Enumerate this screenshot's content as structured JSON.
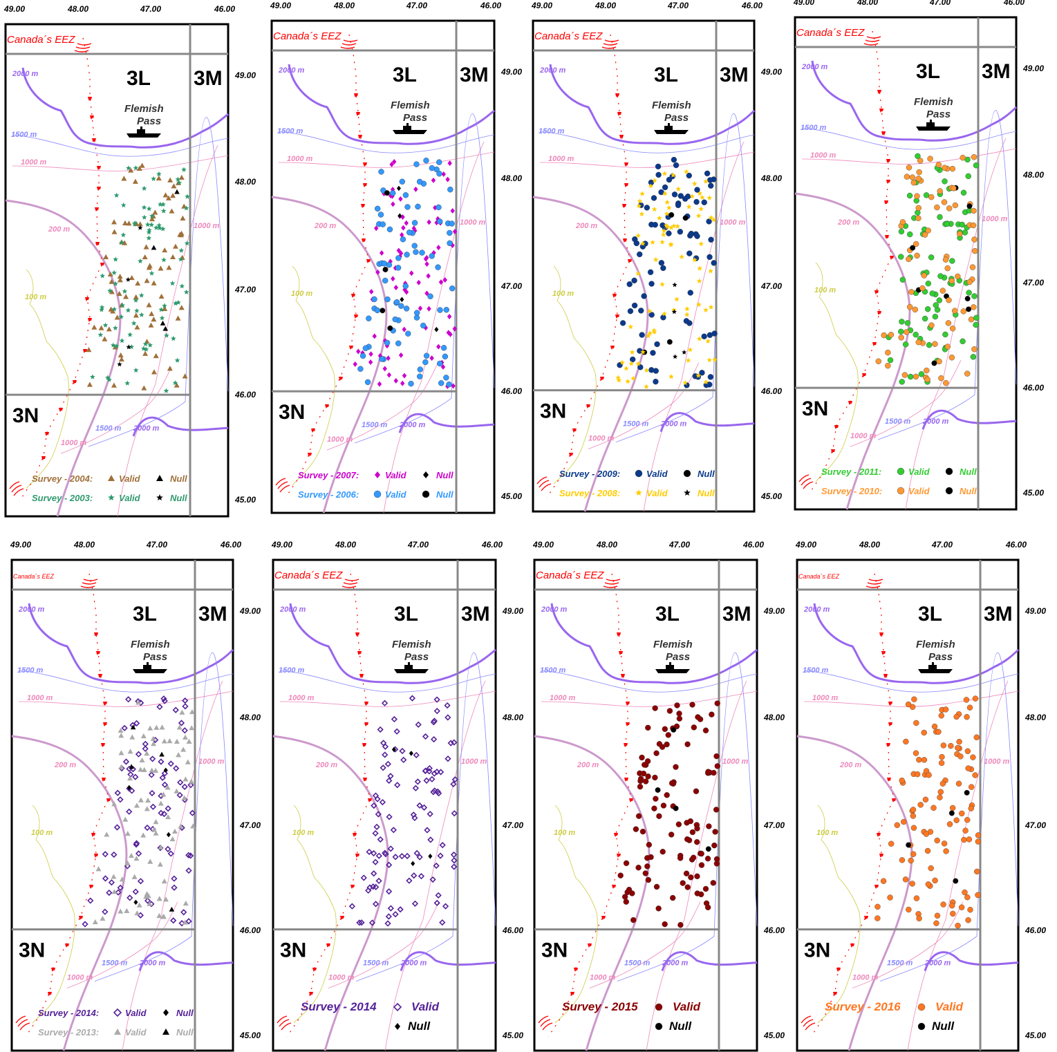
{
  "common": {
    "lon_labels": [
      "49.00",
      "48.00",
      "47.00",
      "46.00"
    ],
    "lat_labels": [
      "49.00",
      "48.00",
      "47.00",
      "46.00",
      "45.00"
    ],
    "division_labels": [
      "3L",
      "3M",
      "3N"
    ],
    "place_name": [
      "Flemish",
      "Pass"
    ],
    "eez_label": "Canada´s EEZ",
    "isobath_labels": [
      "2000 m",
      "1500 m",
      "1000 m",
      "200 m",
      "100 m",
      "1000 m",
      "1500 m",
      "2000 m",
      "1000 m"
    ]
  },
  "colors": {
    "eez": "#ff0000",
    "deep_isobath": "#9966ee",
    "mid_isobath": "#8888ff",
    "pink_isobath": "#ee88bb",
    "shelf_isobath": "#cc99cc",
    "shallow_isobath": "#cccc44",
    "grid": "#888888"
  },
  "panels": [
    {
      "legend": [
        {
          "survey": "Survey - 2004:",
          "valid": "Valid",
          "null": "Null",
          "color": "#a0703a",
          "symbol": "triangle"
        },
        {
          "survey": "Survey - 2003:",
          "valid": "Valid",
          "null": "Null",
          "color": "#2e9a6e",
          "symbol": "star"
        }
      ]
    },
    {
      "legend": [
        {
          "survey": "Survey - 2007:",
          "valid": "Valid",
          "null": "Null",
          "color": "#cc00cc",
          "symbol": "diamond"
        },
        {
          "survey": "Survey - 2006:",
          "valid": "Valid",
          "null": "Null",
          "color": "#3399ff",
          "symbol": "circle"
        }
      ]
    },
    {
      "legend": [
        {
          "survey": "Survey - 2009:",
          "valid": "Valid",
          "null": "Null",
          "color": "#0b3a8c",
          "symbol": "circle"
        },
        {
          "survey": "Survey - 2008:",
          "valid": "Valid",
          "null": "Null",
          "color": "#ffcc00",
          "symbol": "star"
        }
      ]
    },
    {
      "legend": [
        {
          "survey": "Survey - 2011:",
          "valid": "Valid",
          "null": "Null",
          "color": "#33cc33",
          "symbol": "circle"
        },
        {
          "survey": "Survey - 2010:",
          "valid": "Valid",
          "null": "Null",
          "color": "#ff9933",
          "symbol": "circle"
        }
      ]
    },
    {
      "legend": [
        {
          "survey": "Survey - 2014:",
          "valid": "Valid",
          "null": "Null",
          "color": "#552299",
          "symbol": "odiamond"
        },
        {
          "survey": "Survey - 2013:",
          "valid": "Valid",
          "null": "Null",
          "color": "#aaaaaa",
          "symbol": "triangle"
        }
      ]
    },
    {
      "legend": [
        {
          "survey": "Survey - 2014",
          "valid": "Valid",
          "null": "Null",
          "color": "#552299",
          "symbol": "odiamond"
        }
      ]
    },
    {
      "legend": [
        {
          "survey": "Survey - 2015",
          "valid": "Valid",
          "null": "Null",
          "color": "#8b0000",
          "symbol": "circle"
        }
      ]
    },
    {
      "legend": [
        {
          "survey": "Survey - 2016",
          "valid": "Valid",
          "null": "Null",
          "color": "#ff7722",
          "symbol": "circle"
        }
      ]
    }
  ]
}
